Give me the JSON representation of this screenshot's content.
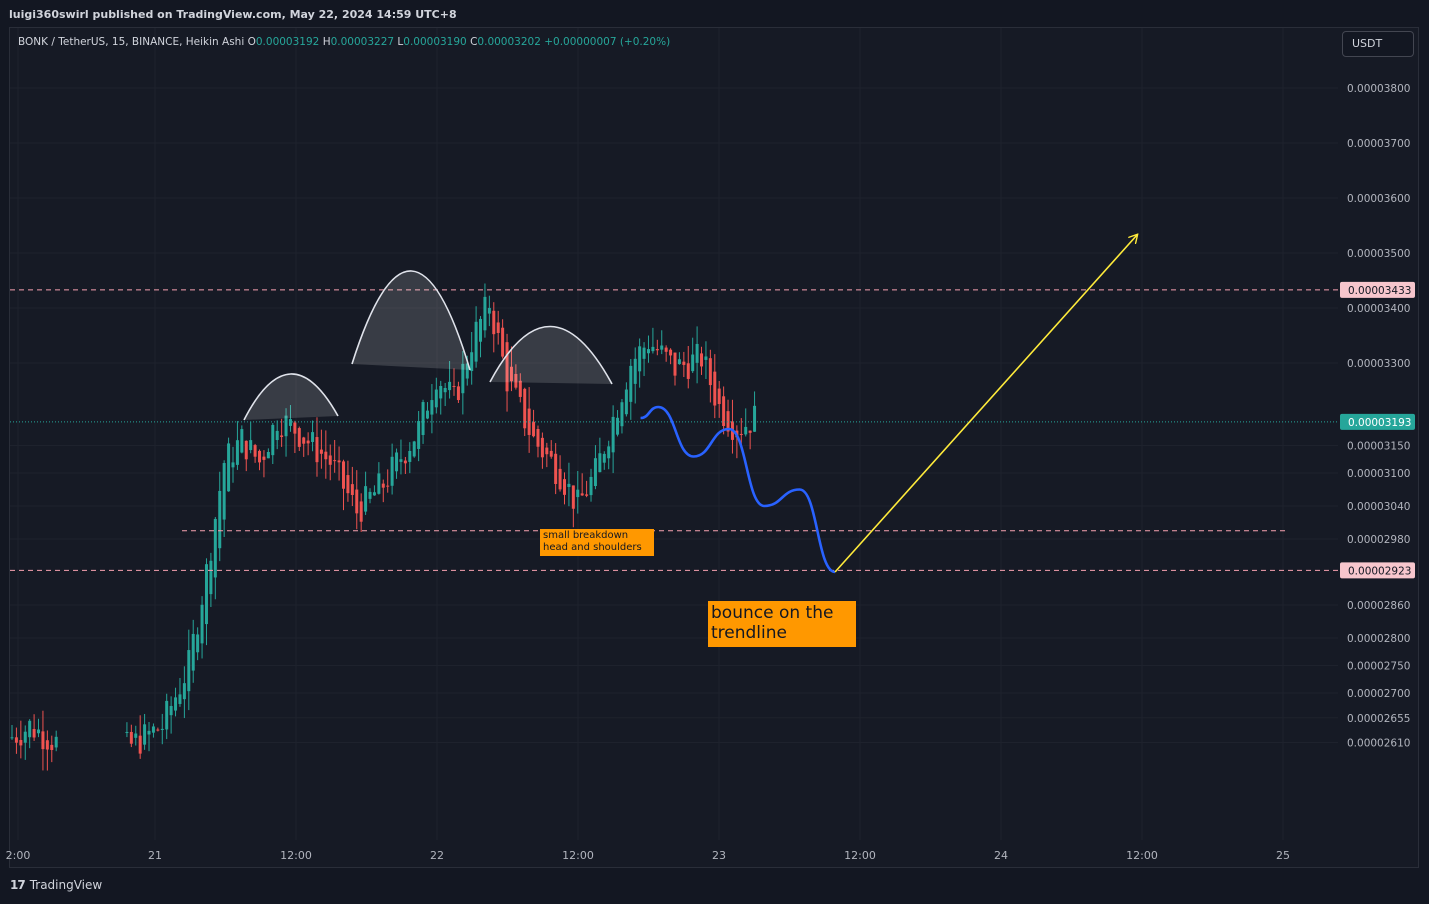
{
  "published": "luigi360swirl published on TradingView.com, May 22, 2024 14:59 UTC+8",
  "legend": {
    "symbol": "BONK / TetherUS, 15, BINANCE, Heikin Ashi",
    "o_label": "O",
    "o_value": "0.00003192",
    "h_label": "H",
    "h_value": "0.00003227",
    "l_label": "L",
    "l_value": "0.00003190",
    "c_label": "C",
    "c_value": "0.00003202",
    "change": "+0.00000007 (+0.20%)"
  },
  "currency": "USDT",
  "footer": {
    "brand": "TradingView"
  },
  "colors": {
    "up": "#26a69a",
    "down": "#ef5350",
    "projection": "#2962ff",
    "target": "#ffeb3b",
    "tag": "#ff9800"
  },
  "chart_data": {
    "type": "candlestick",
    "style": "Heikin Ashi",
    "interval": "15",
    "ylim": [
      2.59e-05,
      3.85e-05
    ],
    "y_ticks": [
      "0.00003800",
      "0.00003700",
      "0.00003600",
      "0.00003500",
      "0.00003400",
      "0.00003300",
      "0.00003150",
      "0.00003100",
      "0.00003040",
      "0.00002980",
      "0.00002860",
      "0.00002800",
      "0.00002750",
      "0.00002700",
      "0.00002655",
      "0.00002610"
    ],
    "x_ticks": [
      "2:00",
      "21",
      "12:00",
      "22",
      "12:00",
      "23",
      "12:00",
      "24",
      "12:00",
      "25"
    ],
    "levels": [
      {
        "value": "0.00003433",
        "label": "0.00003433"
      },
      {
        "value": "0.00002923",
        "label": "0.00002923"
      }
    ],
    "neckline": 2.995e-05,
    "last_price": {
      "value": 3.193e-05,
      "label": "0.00003193"
    },
    "price_path": [
      [
        0,
        2.62e-05
      ],
      [
        4,
        2.64e-05
      ],
      [
        10,
        2.61e-05
      ],
      [
        26,
        2.6e-05
      ],
      [
        34,
        2.64e-05
      ],
      [
        40,
        2.75e-05
      ],
      [
        44,
        2.92e-05
      ],
      [
        48,
        3.12e-05
      ],
      [
        52,
        3.16e-05
      ],
      [
        56,
        3.12e-05
      ],
      [
        60,
        3.2e-05
      ],
      [
        64,
        3.18e-05
      ],
      [
        72,
        3.12e-05
      ],
      [
        78,
        3.03e-05
      ],
      [
        84,
        3.08e-05
      ],
      [
        92,
        3.18e-05
      ],
      [
        96,
        3.28e-05
      ],
      [
        100,
        3.23e-05
      ],
      [
        104,
        3.34e-05
      ],
      [
        108,
        3.41e-05
      ],
      [
        112,
        3.27e-05
      ],
      [
        118,
        3.16e-05
      ],
      [
        124,
        3.1e-05
      ],
      [
        128,
        3.04e-05
      ],
      [
        132,
        3.1e-05
      ],
      [
        136,
        3.2e-05
      ],
      [
        140,
        3.3e-05
      ],
      [
        144,
        3.34e-05
      ],
      [
        150,
        3.29e-05
      ],
      [
        156,
        3.31e-05
      ],
      [
        160,
        3.22e-05
      ],
      [
        164,
        3.18e-05
      ],
      [
        168,
        3.2e-05
      ]
    ],
    "projection": [
      [
        168,
        3.2e-05
      ],
      [
        172,
        3.22e-05
      ],
      [
        180,
        3.13e-05
      ],
      [
        188,
        3.18e-05
      ],
      [
        196,
        3.04e-05
      ],
      [
        204,
        3.07e-05
      ],
      [
        212,
        2.92e-05
      ]
    ],
    "target_arrow": {
      "from": [
        212,
        2.92e-05
      ],
      "to": [
        290,
        3.52e-05
      ]
    },
    "x_range": [
      0,
      320
    ],
    "annotations": [
      {
        "text_lines": [
          "small breakdown",
          "head and shoulders"
        ]
      },
      {
        "text_lines": [
          "bounce on the",
          "trendline"
        ]
      }
    ]
  }
}
